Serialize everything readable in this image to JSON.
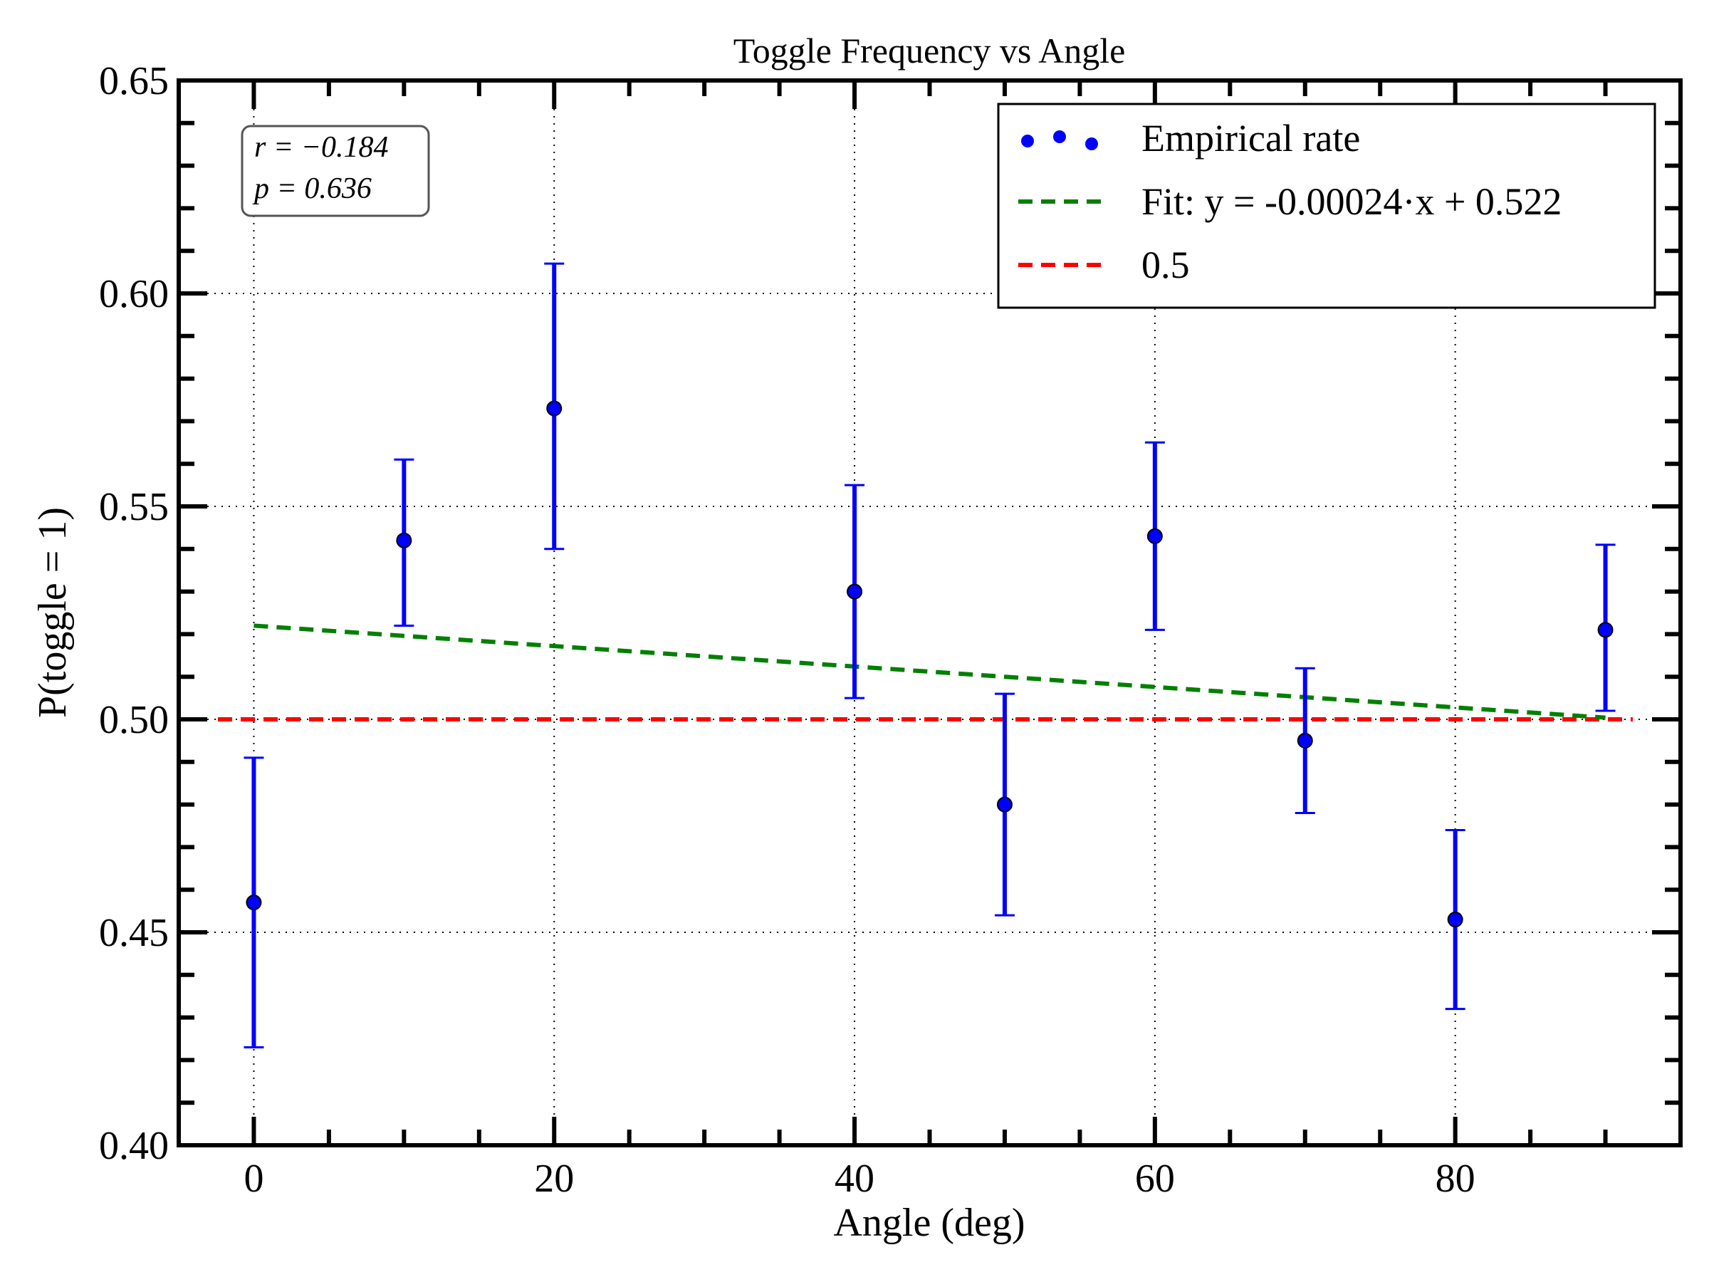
{
  "chart_data": {
    "type": "scatter",
    "title": "Toggle Frequency vs Angle",
    "xlabel": "Angle (deg)",
    "ylabel": "P(toggle = 1)",
    "xlim": [
      -5,
      95
    ],
    "ylim": [
      0.4,
      0.65
    ],
    "x_ticks": [
      0,
      20,
      40,
      60,
      80
    ],
    "x_tick_labels": [
      "0",
      "20",
      "40",
      "60",
      "80"
    ],
    "y_ticks": [
      0.4,
      0.45,
      0.5,
      0.55,
      0.6,
      0.65
    ],
    "y_tick_labels": [
      "0.40",
      "0.45",
      "0.50",
      "0.55",
      "0.60",
      "0.65"
    ],
    "grid": true,
    "legend_position": "top-right",
    "series": [
      {
        "name": "Empirical rate",
        "kind": "errorbar",
        "color": "#0000ff",
        "x": [
          0,
          10,
          20,
          40,
          50,
          60,
          70,
          80,
          90
        ],
        "y": [
          0.457,
          0.542,
          0.573,
          0.53,
          0.48,
          0.543,
          0.495,
          0.453,
          0.521
        ],
        "err_low": [
          0.423,
          0.522,
          0.54,
          0.505,
          0.454,
          0.521,
          0.478,
          0.432,
          0.502
        ],
        "err_high": [
          0.491,
          0.561,
          0.607,
          0.555,
          0.506,
          0.565,
          0.512,
          0.474,
          0.541
        ]
      },
      {
        "name": "Fit: y = -0.00024·x + 0.522",
        "kind": "line",
        "color": "#008000",
        "dash": "dashed",
        "slope": -0.00024,
        "intercept": 0.522,
        "x": [
          0,
          90
        ]
      },
      {
        "name": "0.5",
        "kind": "hline",
        "color": "#ff0000",
        "dash": "dashed",
        "y": 0.5
      }
    ],
    "annotation": {
      "r_label": "r = −0.184",
      "p_label": "p = 0.636"
    }
  }
}
